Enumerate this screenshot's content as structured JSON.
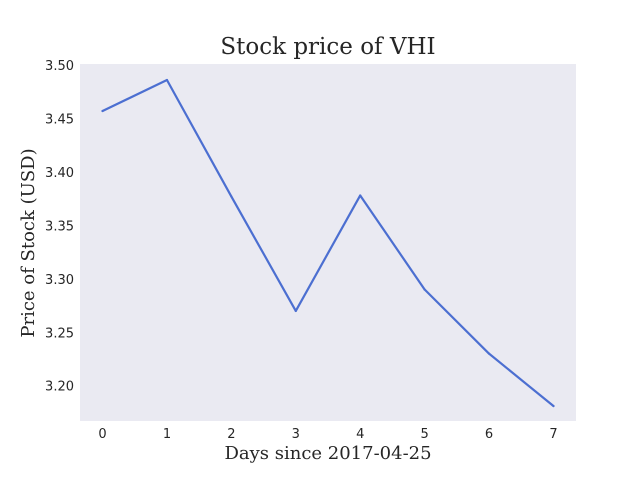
{
  "chart_data": {
    "type": "line",
    "title": "Stock price of VHI",
    "xlabel": "Days since 2017-04-25",
    "ylabel": "Price of Stock (USD)",
    "x": [
      0,
      1,
      2,
      3,
      4,
      5,
      6,
      7
    ],
    "x_ticks": [
      "0",
      "1",
      "2",
      "3",
      "4",
      "5",
      "6",
      "7"
    ],
    "y_ticks": [
      "3.20",
      "3.25",
      "3.30",
      "3.35",
      "3.40",
      "3.45",
      "3.50"
    ],
    "xlim": [
      -0.35,
      7.35
    ],
    "ylim": [
      3.167,
      3.501
    ],
    "series": [
      {
        "values": [
          3.457,
          3.486,
          3.377,
          3.27,
          3.378,
          3.29,
          3.23,
          3.181
        ],
        "color": "#4c6fd1"
      }
    ],
    "background_color": "#eaeaf2",
    "grid": false,
    "legend": "none"
  }
}
